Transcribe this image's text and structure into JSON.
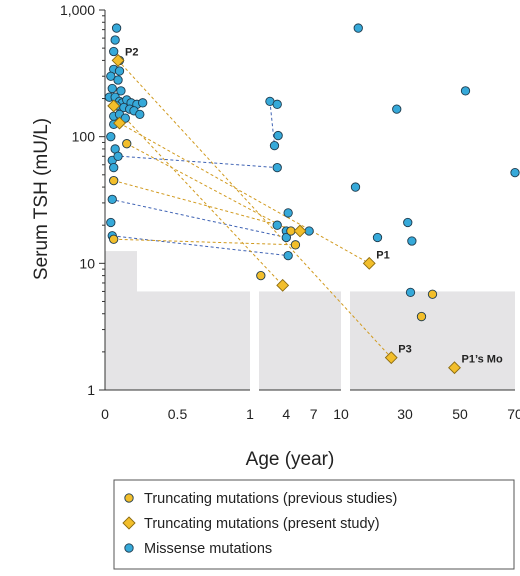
{
  "chart_data": {
    "type": "scatter",
    "title": "",
    "xlabel": "Age (year)",
    "ylabel": "Serum TSH (mU/L)",
    "y_scale": "log",
    "ylim": [
      1,
      1000
    ],
    "y_ticks": [
      "1",
      "10",
      "100",
      "1,000"
    ],
    "x_axis_segments": [
      {
        "range": [
          0,
          1
        ],
        "ticks": [
          "0",
          "0.5",
          "1"
        ]
      },
      {
        "range": [
          1,
          10
        ],
        "ticks": [
          "4",
          "7",
          "10"
        ]
      },
      {
        "range": [
          10,
          70
        ],
        "ticks": [
          "30",
          "50",
          "70"
        ]
      }
    ],
    "reference_range_mU_L": [
      {
        "age": [
          0,
          0.2
        ],
        "upper": 12.5
      },
      {
        "age": [
          0.2,
          70
        ],
        "upper": 6
      }
    ],
    "colors": {
      "truncating_previous": "#f2be2b",
      "truncating_present": "#f2be2b",
      "missense": "#36a9d9",
      "marker_edge": "#1f3b4d",
      "missense_line": "#3f63b4",
      "truncating_line": "#d19a1f",
      "reference_band": "#e5e4e6"
    },
    "legend": [
      {
        "marker": "circle",
        "series": "truncating_previous",
        "label": "Truncating mutations (previous studies)"
      },
      {
        "marker": "diamond",
        "series": "truncating_present",
        "label": "Truncating mutations (present study)"
      },
      {
        "marker": "circle",
        "series": "missense",
        "label": "Missense mutations"
      }
    ],
    "series": {
      "missense": [
        [
          0.08,
          720
        ],
        [
          0.07,
          580
        ],
        [
          0.06,
          470
        ],
        [
          0.1,
          400
        ],
        [
          0.06,
          340
        ],
        [
          0.1,
          330
        ],
        [
          0.04,
          300
        ],
        [
          0.09,
          280
        ],
        [
          0.05,
          240
        ],
        [
          0.11,
          230
        ],
        [
          0.03,
          205
        ],
        [
          0.07,
          205
        ],
        [
          0.1,
          190
        ],
        [
          0.12,
          185
        ],
        [
          0.15,
          195
        ],
        [
          0.18,
          185
        ],
        [
          0.22,
          180
        ],
        [
          0.26,
          185
        ],
        [
          0.08,
          175
        ],
        [
          0.13,
          170
        ],
        [
          0.17,
          165
        ],
        [
          0.2,
          160
        ],
        [
          0.24,
          150
        ],
        [
          0.06,
          145
        ],
        [
          0.1,
          150
        ],
        [
          0.14,
          140
        ],
        [
          0.06,
          125
        ],
        [
          0.04,
          100
        ],
        [
          0.07,
          80
        ],
        [
          0.05,
          65
        ],
        [
          0.09,
          70
        ],
        [
          0.06,
          57
        ],
        [
          0.05,
          32
        ],
        [
          0.04,
          21
        ],
        [
          0.05,
          16.5
        ],
        [
          2.2,
          190
        ],
        [
          3.0,
          180
        ],
        [
          2.7,
          85
        ],
        [
          3.1,
          102
        ],
        [
          3.0,
          57
        ],
        [
          3.0,
          20
        ],
        [
          4.0,
          18
        ],
        [
          4.2,
          25
        ],
        [
          6.5,
          18
        ],
        [
          4.0,
          16
        ],
        [
          4.2,
          11.5
        ],
        [
          13,
          720
        ],
        [
          12,
          40
        ],
        [
          20,
          16
        ],
        [
          27,
          165
        ],
        [
          31,
          21
        ],
        [
          32.5,
          15
        ],
        [
          32,
          5.9
        ],
        [
          52,
          230
        ],
        [
          70,
          52
        ]
      ],
      "truncating_previous": [
        [
          0.15,
          88
        ],
        [
          0.06,
          45
        ],
        [
          0.06,
          15.5
        ],
        [
          1.2,
          8
        ],
        [
          4.5,
          18
        ],
        [
          5.0,
          14
        ],
        [
          36,
          3.8
        ],
        [
          40,
          5.7
        ]
      ],
      "truncating_present": [
        {
          "label": "P2",
          "x": 0.09,
          "y": 400
        },
        {
          "label": "",
          "x": 0.06,
          "y": 175
        },
        {
          "label": "",
          "x": 0.1,
          "y": 128
        },
        {
          "label": "P1",
          "x": 17,
          "y": 10
        },
        {
          "label": "",
          "x": 5.5,
          "y": 18
        },
        {
          "label": "",
          "x": 3.6,
          "y": 6.7
        },
        {
          "label": "P3",
          "x": 25,
          "y": 1.8
        },
        {
          "label": "P1’s Mo",
          "x": 48,
          "y": 1.5
        }
      ]
    },
    "missense_follow_up": [
      [
        [
          2.2,
          190
        ],
        [
          2.7,
          85
        ]
      ],
      [
        [
          0.11,
          70
        ],
        [
          3.0,
          57
        ]
      ],
      [
        [
          0.04,
          32
        ],
        [
          4.0,
          16
        ]
      ],
      [
        [
          0.05,
          16.5
        ],
        [
          4.2,
          11.5
        ]
      ]
    ],
    "truncating_follow_up": [
      [
        [
          0.1,
          128
        ],
        [
          17,
          10
        ]
      ],
      [
        [
          0.06,
          175
        ],
        [
          3.6,
          6.7
        ]
      ],
      [
        [
          0.09,
          400
        ],
        [
          25,
          1.8
        ]
      ],
      [
        [
          0.06,
          45
        ],
        [
          5.5,
          18
        ]
      ],
      [
        [
          0.06,
          15.5
        ],
        [
          5.0,
          14
        ]
      ],
      [
        [
          0.15,
          88
        ],
        [
          4.5,
          18
        ]
      ]
    ]
  }
}
